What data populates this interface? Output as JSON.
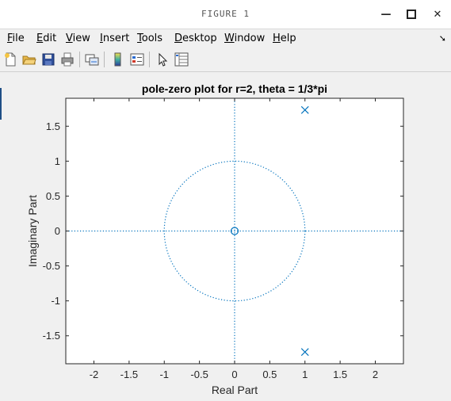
{
  "window": {
    "title": "FIGURE 1"
  },
  "menu": {
    "items": [
      {
        "key": "file",
        "u": "F",
        "rest": "ile"
      },
      {
        "key": "edit",
        "u": "E",
        "rest": "dit"
      },
      {
        "key": "view",
        "u": "V",
        "rest": "iew"
      },
      {
        "key": "insert",
        "u": "I",
        "rest": "nsert"
      },
      {
        "key": "tools",
        "u": "T",
        "rest": "ools"
      },
      {
        "key": "desktop",
        "u": "D",
        "rest": "esktop"
      },
      {
        "key": "window",
        "u": "W",
        "rest": "indow"
      },
      {
        "key": "help",
        "u": "H",
        "rest": "elp"
      }
    ]
  },
  "toolbar": {
    "icons": [
      "new-figure-icon",
      "open-file-icon",
      "save-icon",
      "print-icon",
      "link-plot-icon",
      "colorbar-icon",
      "legend-icon",
      "pointer-icon",
      "property-inspector-icon"
    ]
  },
  "chart_data": {
    "type": "scatter",
    "title": "pole-zero plot for r=2, theta = 1/3*pi",
    "xlabel": "Real Part",
    "ylabel": "Imaginary Part",
    "xlim": [
      -2.4,
      2.4
    ],
    "ylim": [
      -1.9,
      1.9
    ],
    "xticks": [
      -2,
      -1.5,
      -1,
      -0.5,
      0,
      0.5,
      1,
      1.5,
      2
    ],
    "yticks": [
      -1.5,
      -1,
      -0.5,
      0,
      0.5,
      1,
      1.5
    ],
    "xtick_labels": [
      "-2",
      "-1.5",
      "-1",
      "-0.5",
      "0",
      "0.5",
      "1",
      "1.5",
      "2"
    ],
    "ytick_labels": [
      "-1.5",
      "-1",
      "-0.5",
      "0",
      "0.5",
      "1",
      "1.5"
    ],
    "zeros": [
      {
        "x": 0,
        "y": 0
      }
    ],
    "poles": [
      {
        "x": 1,
        "y": 1.732
      },
      {
        "x": 1,
        "y": -1.732
      }
    ],
    "unit_circle": true,
    "grid": false,
    "marker_color": "#0072bd"
  }
}
